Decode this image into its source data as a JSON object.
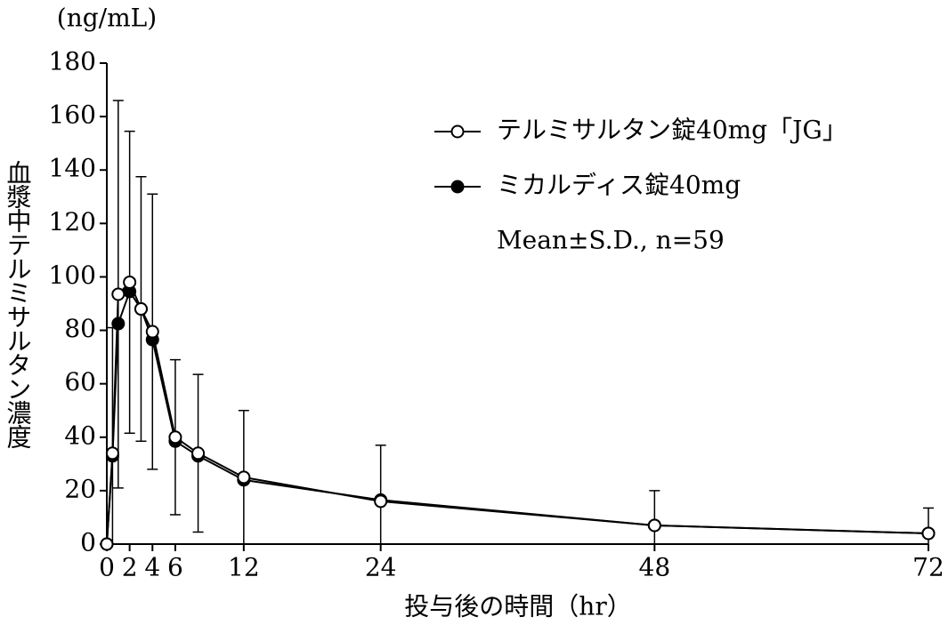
{
  "chart_data": {
    "type": "line",
    "y_unit": "(ng/mL)",
    "y_label": "血漿中テルミサルタン濃度",
    "x_label": "投与後の時間（hr）",
    "annotation": "Mean±S.D., n=59",
    "x": [
      0,
      0.5,
      1,
      2,
      3,
      4,
      6,
      8,
      12,
      24,
      48,
      72
    ],
    "series": [
      {
        "name": "ミカルディス錠40mg",
        "color": "#000000",
        "marker": "filled",
        "values": [
          0,
          33,
          82.5,
          94.5,
          88,
          76.5,
          38.5,
          33,
          24,
          16.5,
          7,
          4
        ]
      },
      {
        "name": "テルミサルタン錠40mg「JG」",
        "color": "#000000",
        "marker": "open",
        "values": [
          0,
          34,
          93.5,
          98,
          88,
          79.5,
          40,
          34,
          25,
          16,
          7,
          4
        ],
        "errors": [
          null,
          47,
          72.5,
          56.5,
          49.5,
          51.5,
          29,
          29.5,
          25,
          21,
          13,
          9.5
        ]
      }
    ],
    "legend_order": [
      1,
      0
    ],
    "xlim": [
      0,
      72
    ],
    "xticks": [
      0,
      2,
      4,
      6,
      12,
      24,
      48,
      72
    ],
    "ylim": [
      0,
      180
    ],
    "yticks": [
      0,
      20,
      40,
      60,
      80,
      100,
      120,
      140,
      160,
      180
    ]
  }
}
